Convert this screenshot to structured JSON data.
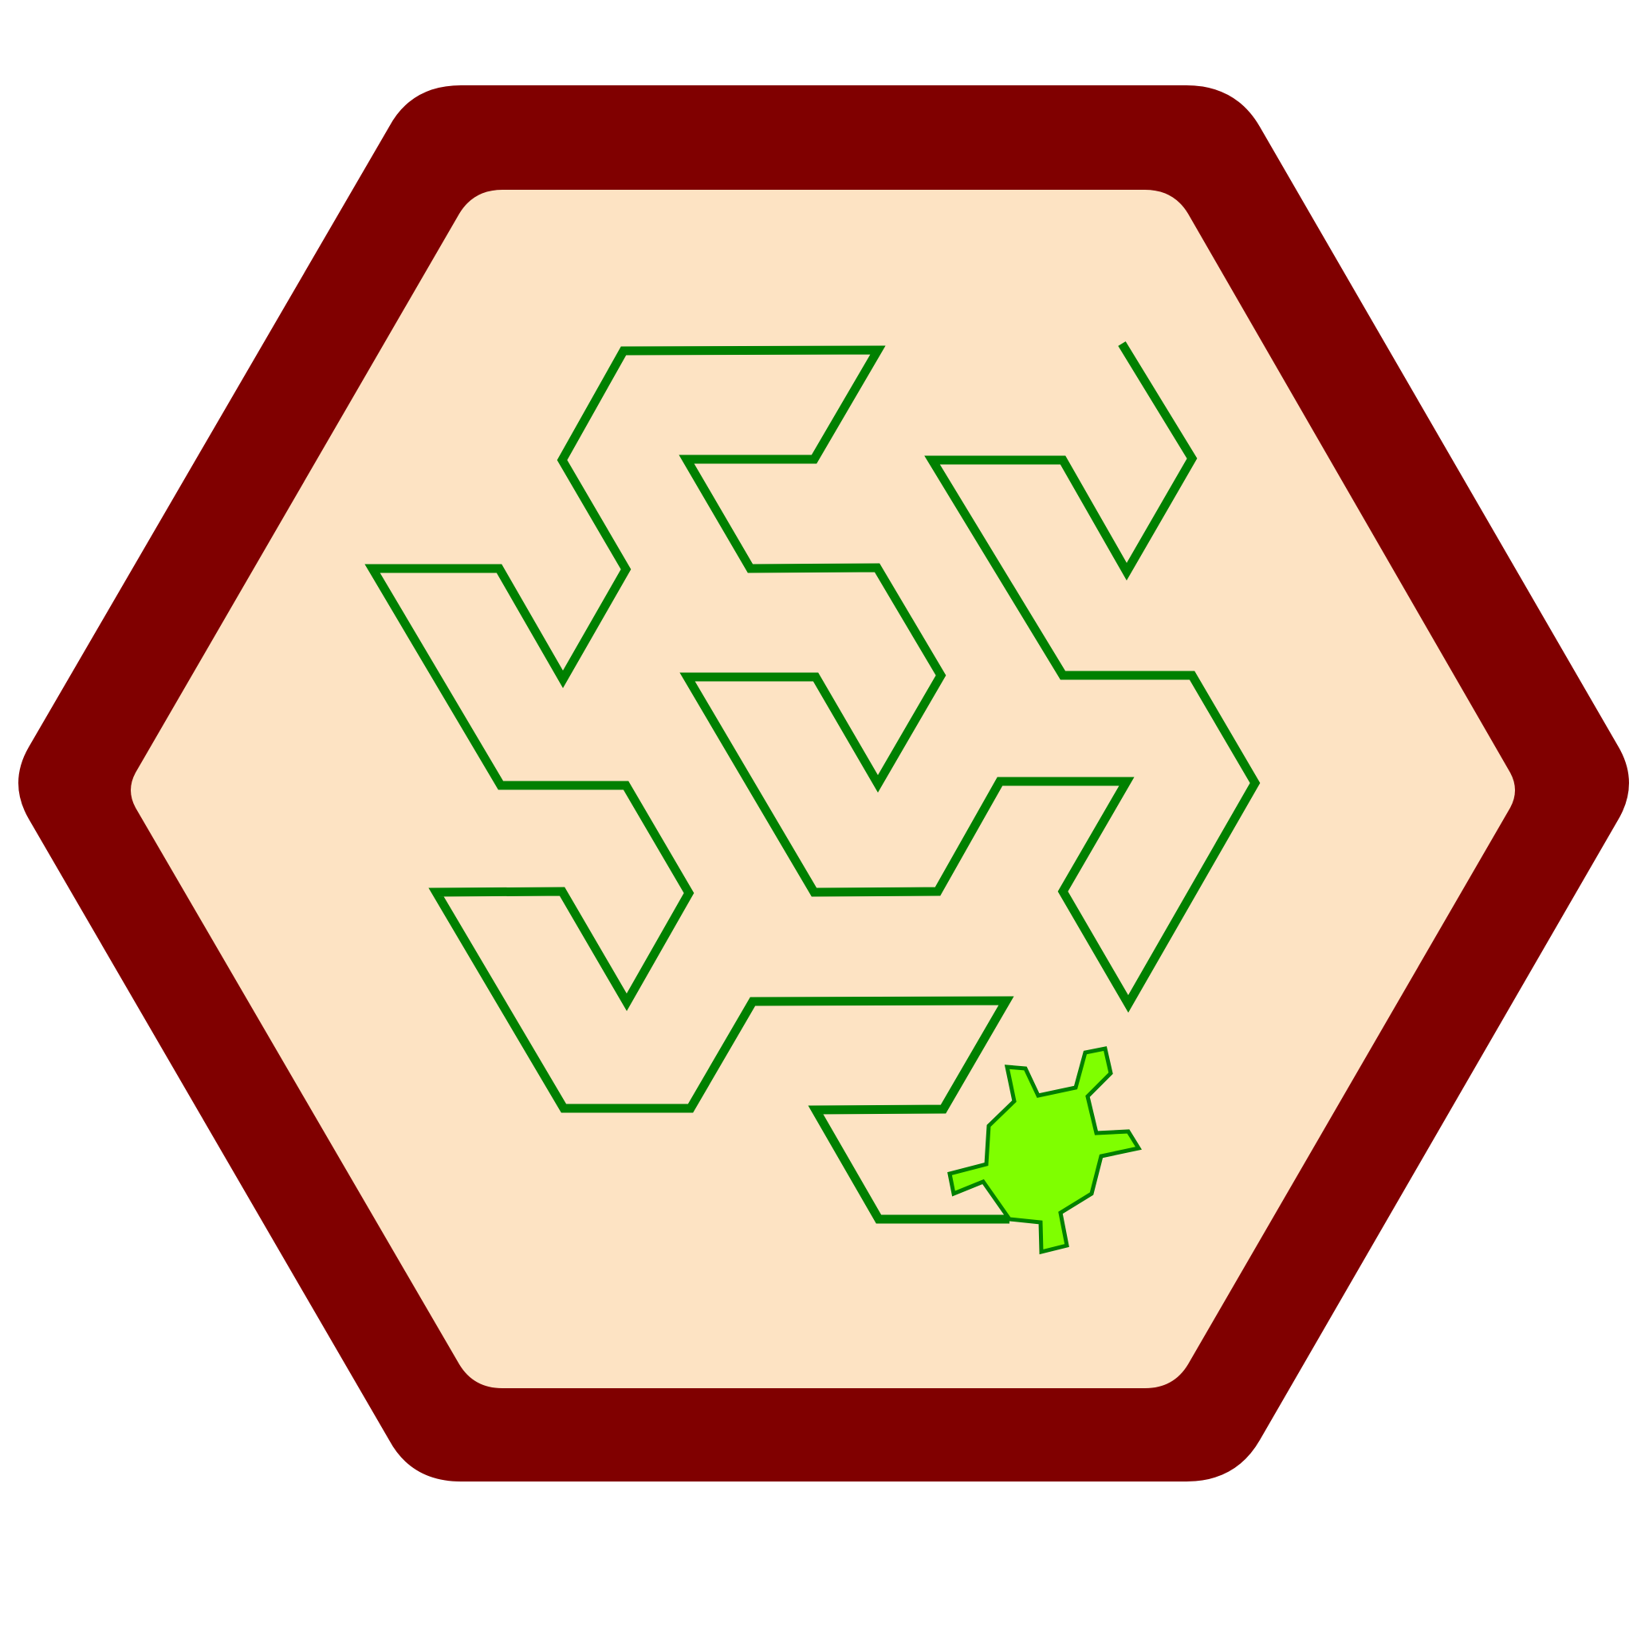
{
  "scene": {
    "type": "turtle-graphics-hexagon-maze",
    "background_color": "#ffffff"
  },
  "hexagon": {
    "frame_color": "#800000",
    "fill_color": "#fde3c3"
  },
  "trail": {
    "color": "#008000",
    "description_icon": "turtle-trail-path"
  },
  "turtle": {
    "icon": "turtle-icon",
    "fill_color": "#7fff00",
    "outline_color": "#008000"
  }
}
